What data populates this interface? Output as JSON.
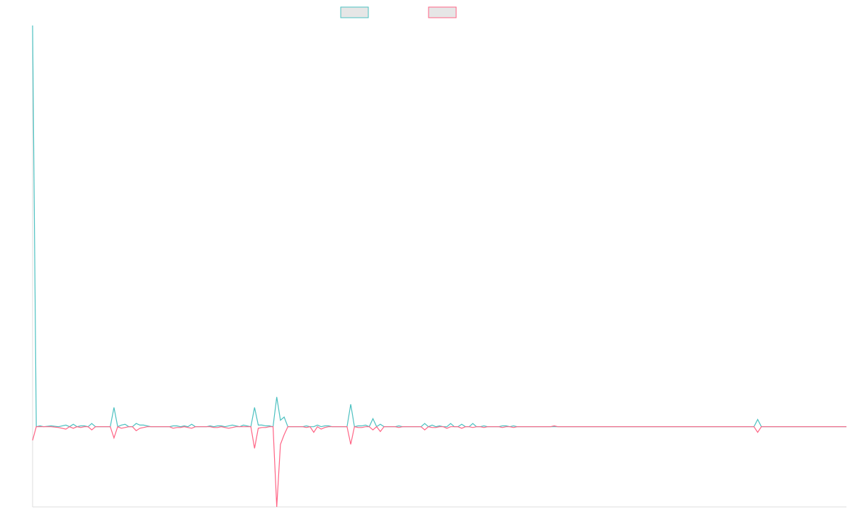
{
  "colors": {
    "series_a": "#4bc0c0",
    "series_b": "#ff6384",
    "swatch_fill": "#e6e6e6",
    "axis": "#dddddd"
  },
  "chart_data": {
    "type": "line",
    "title": "",
    "xlabel": "",
    "ylabel": "",
    "grid": false,
    "legend": "top-center",
    "ylim": [
      -100,
      500
    ],
    "x_count": 220,
    "series": [
      {
        "name": "",
        "color": "#4bc0c0",
        "points": [
          [
            0,
            500
          ],
          [
            1,
            0
          ],
          [
            2,
            1
          ],
          [
            3,
            0
          ],
          [
            5,
            1
          ],
          [
            7,
            0
          ],
          [
            9,
            2
          ],
          [
            10,
            0
          ],
          [
            11,
            3
          ],
          [
            12,
            0
          ],
          [
            13,
            1
          ],
          [
            14,
            1
          ],
          [
            15,
            0
          ],
          [
            16,
            4
          ],
          [
            17,
            0
          ],
          [
            19,
            0
          ],
          [
            21,
            0
          ],
          [
            22,
            24
          ],
          [
            23,
            0
          ],
          [
            24,
            2
          ],
          [
            25,
            3
          ],
          [
            26,
            0
          ],
          [
            27,
            0
          ],
          [
            28,
            4
          ],
          [
            29,
            2
          ],
          [
            30,
            2
          ],
          [
            31,
            1
          ],
          [
            32,
            0
          ],
          [
            35,
            0
          ],
          [
            37,
            0
          ],
          [
            38,
            1
          ],
          [
            39,
            1
          ],
          [
            40,
            0
          ],
          [
            41,
            1
          ],
          [
            42,
            0
          ],
          [
            43,
            3
          ],
          [
            44,
            0
          ],
          [
            47,
            0
          ],
          [
            48,
            1
          ],
          [
            49,
            0
          ],
          [
            50,
            1
          ],
          [
            51,
            1
          ],
          [
            52,
            0
          ],
          [
            53,
            1
          ],
          [
            54,
            2
          ],
          [
            55,
            1
          ],
          [
            56,
            0
          ],
          [
            57,
            2
          ],
          [
            58,
            1
          ],
          [
            59,
            0
          ],
          [
            60,
            24
          ],
          [
            61,
            2
          ],
          [
            62,
            2
          ],
          [
            63,
            1
          ],
          [
            64,
            1
          ],
          [
            65,
            0
          ],
          [
            66,
            37
          ],
          [
            67,
            8
          ],
          [
            68,
            12
          ],
          [
            69,
            0
          ],
          [
            73,
            0
          ],
          [
            74,
            1
          ],
          [
            75,
            0
          ],
          [
            76,
            0
          ],
          [
            77,
            2
          ],
          [
            78,
            0
          ],
          [
            79,
            1
          ],
          [
            80,
            1
          ],
          [
            81,
            0
          ],
          [
            84,
            0
          ],
          [
            85,
            0
          ],
          [
            86,
            28
          ],
          [
            87,
            0
          ],
          [
            88,
            1
          ],
          [
            89,
            1
          ],
          [
            90,
            2
          ],
          [
            91,
            0
          ],
          [
            92,
            10
          ],
          [
            93,
            0
          ],
          [
            94,
            3
          ],
          [
            95,
            0
          ],
          [
            98,
            0
          ],
          [
            99,
            1
          ],
          [
            100,
            0
          ],
          [
            105,
            0
          ],
          [
            106,
            4
          ],
          [
            107,
            0
          ],
          [
            108,
            2
          ],
          [
            109,
            0
          ],
          [
            110,
            1
          ],
          [
            111,
            0
          ],
          [
            112,
            0
          ],
          [
            113,
            4
          ],
          [
            114,
            0
          ],
          [
            115,
            0
          ],
          [
            116,
            3
          ],
          [
            117,
            0
          ],
          [
            118,
            0
          ],
          [
            119,
            4
          ],
          [
            120,
            0
          ],
          [
            121,
            0
          ],
          [
            122,
            1
          ],
          [
            123,
            0
          ],
          [
            125,
            0
          ],
          [
            126,
            0
          ],
          [
            127,
            1
          ],
          [
            128,
            1
          ],
          [
            129,
            0
          ],
          [
            130,
            1
          ],
          [
            131,
            0
          ],
          [
            140,
            0
          ],
          [
            141,
            0
          ],
          [
            142,
            0
          ],
          [
            143,
            0
          ],
          [
            150,
            0
          ],
          [
            195,
            0
          ],
          [
            196,
            9
          ],
          [
            197,
            0
          ],
          [
            220,
            0
          ]
        ]
      },
      {
        "name": "",
        "color": "#ff6384",
        "points": [
          [
            0,
            -17
          ],
          [
            1,
            0
          ],
          [
            2,
            0
          ],
          [
            3,
            0
          ],
          [
            5,
            0
          ],
          [
            7,
            -1
          ],
          [
            9,
            -3
          ],
          [
            10,
            0
          ],
          [
            11,
            -2
          ],
          [
            12,
            0
          ],
          [
            13,
            -1
          ],
          [
            14,
            0
          ],
          [
            15,
            0
          ],
          [
            16,
            -4
          ],
          [
            17,
            0
          ],
          [
            19,
            0
          ],
          [
            21,
            0
          ],
          [
            22,
            -14
          ],
          [
            23,
            0
          ],
          [
            24,
            -2
          ],
          [
            25,
            -1
          ],
          [
            26,
            0
          ],
          [
            27,
            0
          ],
          [
            28,
            -5
          ],
          [
            29,
            -2
          ],
          [
            30,
            -1
          ],
          [
            31,
            0
          ],
          [
            32,
            0
          ],
          [
            35,
            0
          ],
          [
            37,
            0
          ],
          [
            38,
            -2
          ],
          [
            39,
            -1
          ],
          [
            40,
            -1
          ],
          [
            41,
            0
          ],
          [
            42,
            -1
          ],
          [
            43,
            -2
          ],
          [
            44,
            0
          ],
          [
            47,
            0
          ],
          [
            48,
            0
          ],
          [
            49,
            -1
          ],
          [
            50,
            -1
          ],
          [
            51,
            0
          ],
          [
            52,
            -1
          ],
          [
            53,
            -2
          ],
          [
            54,
            -1
          ],
          [
            55,
            0
          ],
          [
            56,
            0
          ],
          [
            57,
            0
          ],
          [
            58,
            0
          ],
          [
            59,
            0
          ],
          [
            60,
            -27
          ],
          [
            61,
            -2
          ],
          [
            62,
            -1
          ],
          [
            63,
            -1
          ],
          [
            64,
            0
          ],
          [
            65,
            0
          ],
          [
            66,
            -100
          ],
          [
            67,
            -22
          ],
          [
            68,
            -10
          ],
          [
            69,
            0
          ],
          [
            73,
            0
          ],
          [
            74,
            -1
          ],
          [
            75,
            0
          ],
          [
            76,
            -7
          ],
          [
            77,
            0
          ],
          [
            78,
            -3
          ],
          [
            79,
            -1
          ],
          [
            80,
            0
          ],
          [
            81,
            0
          ],
          [
            84,
            0
          ],
          [
            85,
            0
          ],
          [
            86,
            -22
          ],
          [
            87,
            0
          ],
          [
            88,
            -1
          ],
          [
            89,
            -1
          ],
          [
            90,
            0
          ],
          [
            91,
            0
          ],
          [
            92,
            -4
          ],
          [
            93,
            0
          ],
          [
            94,
            -6
          ],
          [
            95,
            0
          ],
          [
            98,
            0
          ],
          [
            99,
            -1
          ],
          [
            100,
            0
          ],
          [
            105,
            0
          ],
          [
            106,
            -4
          ],
          [
            107,
            0
          ],
          [
            108,
            -1
          ],
          [
            109,
            -1
          ],
          [
            110,
            0
          ],
          [
            111,
            0
          ],
          [
            112,
            -2
          ],
          [
            113,
            0
          ],
          [
            114,
            0
          ],
          [
            115,
            0
          ],
          [
            116,
            -2
          ],
          [
            117,
            0
          ],
          [
            118,
            0
          ],
          [
            119,
            -1
          ],
          [
            120,
            0
          ],
          [
            121,
            0
          ],
          [
            122,
            -1
          ],
          [
            123,
            0
          ],
          [
            125,
            0
          ],
          [
            126,
            0
          ],
          [
            127,
            -1
          ],
          [
            128,
            0
          ],
          [
            129,
            0
          ],
          [
            130,
            -1
          ],
          [
            131,
            0
          ],
          [
            140,
            0
          ],
          [
            141,
            1
          ],
          [
            142,
            0
          ],
          [
            143,
            0
          ],
          [
            150,
            0
          ],
          [
            195,
            0
          ],
          [
            196,
            -7
          ],
          [
            197,
            0
          ],
          [
            220,
            0
          ]
        ]
      }
    ]
  }
}
